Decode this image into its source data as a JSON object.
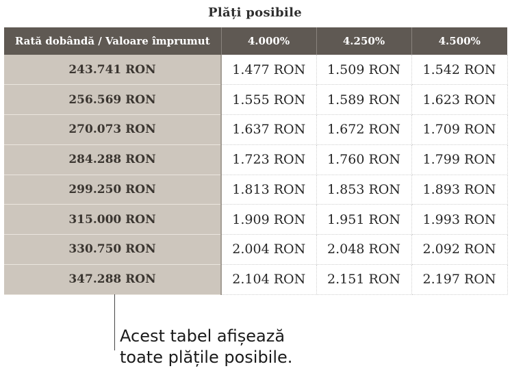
{
  "title": "Plăți posibile",
  "table": {
    "corner_header": "Rată dobândă / Valoare împrumut",
    "rate_headers": [
      "4.000%",
      "4.250%",
      "4.500%"
    ],
    "rows": [
      {
        "loan": "243.741 RON",
        "payments": [
          "1.477 RON",
          "1.509 RON",
          "1.542 RON"
        ]
      },
      {
        "loan": "256.569 RON",
        "payments": [
          "1.555 RON",
          "1.589 RON",
          "1.623 RON"
        ]
      },
      {
        "loan": "270.073 RON",
        "payments": [
          "1.637 RON",
          "1.672 RON",
          "1.709 RON"
        ]
      },
      {
        "loan": "284.288 RON",
        "payments": [
          "1.723 RON",
          "1.760 RON",
          "1.799 RON"
        ]
      },
      {
        "loan": "299.250 RON",
        "payments": [
          "1.813 RON",
          "1.853 RON",
          "1.893 RON"
        ]
      },
      {
        "loan": "315.000 RON",
        "payments": [
          "1.909 RON",
          "1.951 RON",
          "1.993 RON"
        ]
      },
      {
        "loan": "330.750 RON",
        "payments": [
          "2.004 RON",
          "2.048 RON",
          "2.092 RON"
        ]
      },
      {
        "loan": "347.288 RON",
        "payments": [
          "2.104 RON",
          "2.151 RON",
          "2.197 RON"
        ]
      }
    ]
  },
  "callout": {
    "line1": "Acest tabel afișează",
    "line2": "toate plățile posibile."
  },
  "colors": {
    "header_bg": "#5f5953",
    "row_header_bg": "#cdc6bd",
    "text": "#262626"
  }
}
